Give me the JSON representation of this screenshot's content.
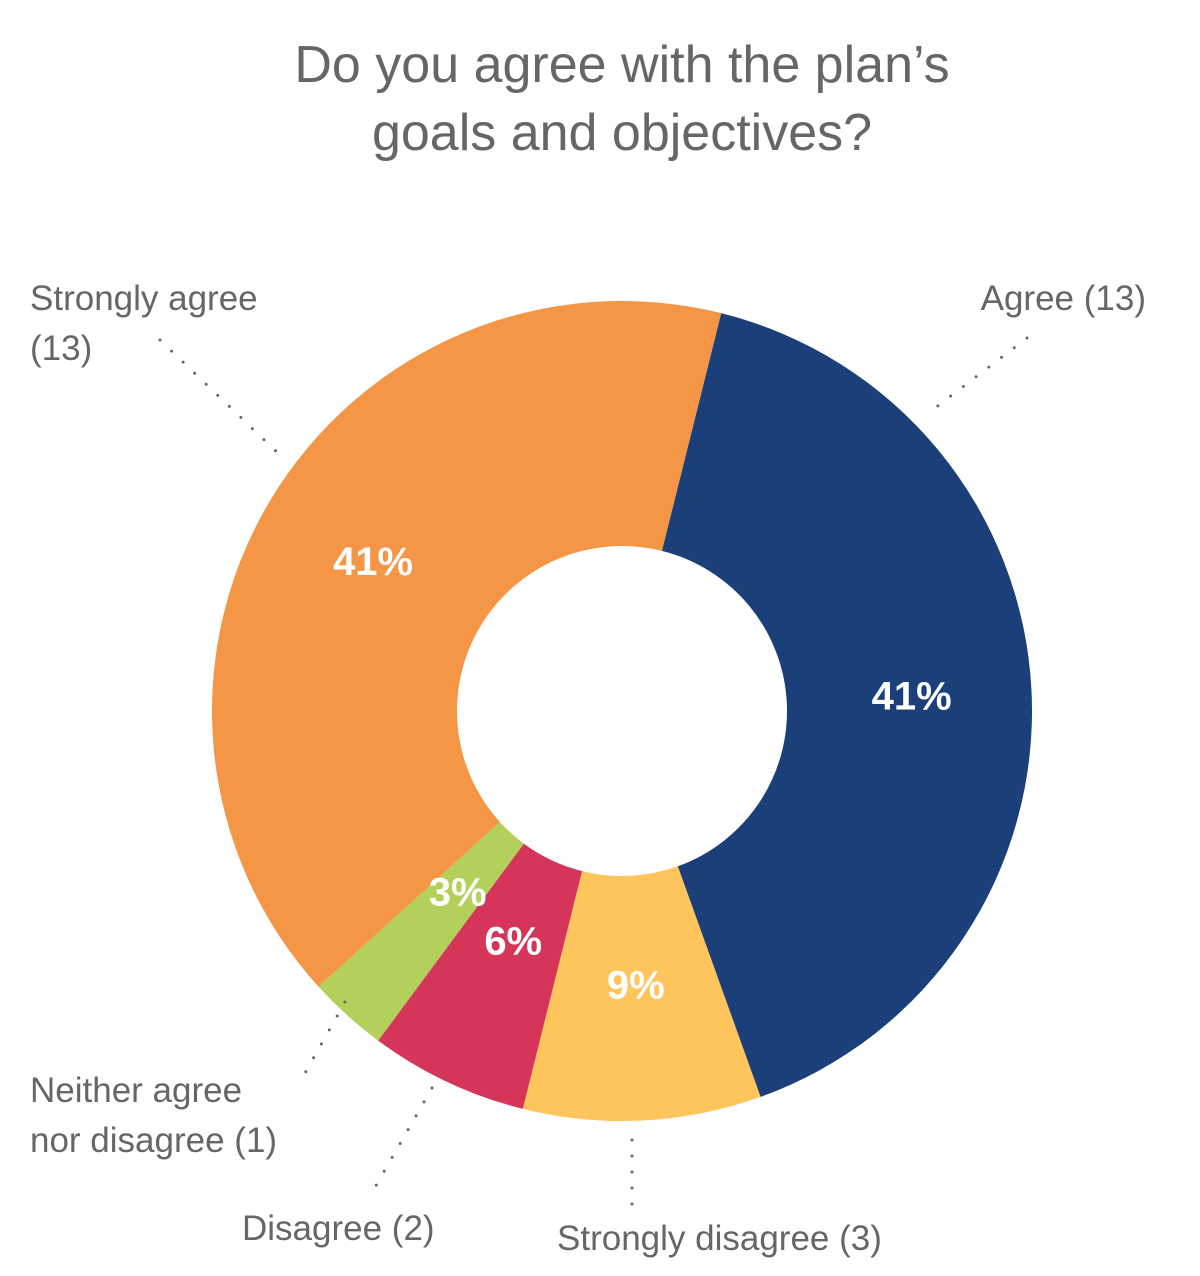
{
  "chart_data": {
    "type": "pie",
    "variant": "donut",
    "title_lines": [
      "Do you agree with the plan’s",
      "goals and objectives?"
    ],
    "slices": [
      {
        "label": "Agree (13)",
        "count": 13,
        "percent": 41,
        "percent_label": "41%",
        "color": "#1b3f78"
      },
      {
        "label": "Strongly disagree (3)",
        "count": 3,
        "percent": 9,
        "percent_label": "9%",
        "color": "#fdc55c"
      },
      {
        "label": "Disagree (2)",
        "count": 2,
        "percent": 6,
        "percent_label": "6%",
        "color": "#d6355a"
      },
      {
        "label": "Neither agree nor disagree (1)",
        "count": 1,
        "percent": 3,
        "percent_label": "3%",
        "color": "#b2d05a"
      },
      {
        "label": "Strongly agree (13)",
        "count": 13,
        "percent": 41,
        "percent_label": "41%",
        "color": "#f59646"
      }
    ],
    "label_lines": [
      [
        "Agree (13)"
      ],
      [
        "Strongly disagree (3)"
      ],
      [
        "Disagree (2)"
      ],
      [
        "Neither agree",
        "nor disagree (1)"
      ],
      [
        "Strongly agree",
        "(13)"
      ]
    ],
    "legend": "none (labels beside slices with dotted leaders)"
  }
}
